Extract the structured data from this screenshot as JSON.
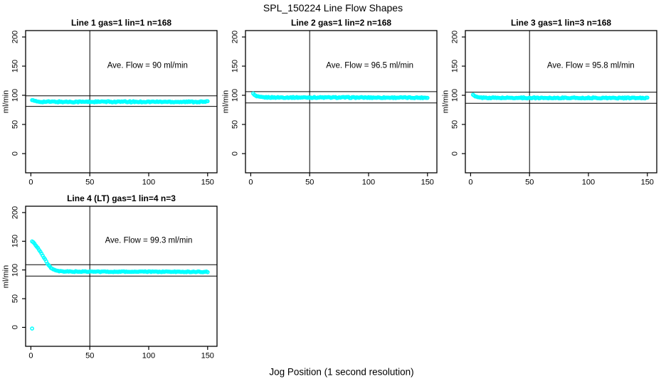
{
  "figure": {
    "background": "#ffffff"
  },
  "chart_data": {
    "type": "scatter",
    "title": "SPL_150224  Line Flow Shapes",
    "xlabel": "Jog Position (1 second resolution)",
    "layout": "2x2 grid, bottom-right tile empty",
    "grid": "off",
    "legend": "none",
    "point_style": "open-circle",
    "point_color": "#00ffff",
    "axis_color": "#000000",
    "xlim": [
      -4.5,
      158
    ],
    "ylim": [
      -33,
      211
    ],
    "xticks": [
      0,
      50,
      100,
      150
    ],
    "yticks": [
      0,
      50,
      100,
      150,
      200
    ],
    "guide_vline_x": 50,
    "hline_rule": "average flow plus/minus 10 percent",
    "plots": [
      {
        "title": "Line 1 gas=1 lin=1 n=168",
        "ylabel": "ml/min",
        "annotation": "Ave. Flow =  90  ml/min",
        "ave_flow": 90,
        "hlines": [
          99,
          81
        ],
        "label_pos": [
          99,
          150
        ],
        "x_range": [
          1,
          150
        ],
        "noise": 1.0,
        "profile": [
          [
            1,
            92
          ],
          [
            2,
            90.8
          ],
          [
            3,
            90
          ],
          [
            5,
            89.3
          ],
          [
            8,
            89
          ],
          [
            20,
            88.8
          ],
          [
            80,
            88.8
          ],
          [
            150,
            88.8
          ]
        ],
        "extra_points": []
      },
      {
        "title": "Line 2 gas=1 lin=2 n=168",
        "ylabel": "ml/min",
        "annotation": "Ave. Flow =  96.5  ml/min",
        "ave_flow": 96.5,
        "hlines": [
          106.2,
          86.9
        ],
        "label_pos": [
          101,
          150
        ],
        "x_range": [
          2,
          150
        ],
        "noise": 0.9,
        "profile": [
          [
            2,
            102.5
          ],
          [
            3,
            100.5
          ],
          [
            4,
            99
          ],
          [
            5,
            98
          ],
          [
            7,
            97
          ],
          [
            10,
            96.5
          ],
          [
            20,
            96.3
          ],
          [
            80,
            96.2
          ],
          [
            150,
            95.9
          ]
        ],
        "extra_points": []
      },
      {
        "title": "Line 3 gas=1 lin=3 n=168",
        "ylabel": "ml/min",
        "annotation": "Ave. Flow =  95.8  ml/min",
        "ave_flow": 95.8,
        "hlines": [
          105.4,
          86.2
        ],
        "label_pos": [
          102,
          150
        ],
        "x_range": [
          2,
          150
        ],
        "noise": 0.9,
        "profile": [
          [
            2,
            100.5
          ],
          [
            3,
            99
          ],
          [
            4,
            97.8
          ],
          [
            5,
            97
          ],
          [
            7,
            96.2
          ],
          [
            10,
            95.8
          ],
          [
            20,
            95.6
          ],
          [
            80,
            95.5
          ],
          [
            150,
            95.3
          ]
        ],
        "extra_points": []
      },
      {
        "title": "Line 4 (LT) gas=1 lin=4 n=3",
        "ylabel": "ml/min",
        "annotation": "Ave. Flow =  99.3  ml/min",
        "ave_flow": 99.3,
        "hlines": [
          109.2,
          89.4
        ],
        "label_pos": [
          100,
          150
        ],
        "x_range": [
          1,
          150
        ],
        "noise": 0.7,
        "profile": [
          [
            1,
            150
          ],
          [
            2,
            148
          ],
          [
            3,
            146
          ],
          [
            4,
            143.5
          ],
          [
            5,
            141
          ],
          [
            6,
            138
          ],
          [
            7,
            135
          ],
          [
            8,
            132
          ],
          [
            9,
            128.5
          ],
          [
            10,
            125
          ],
          [
            11,
            121.5
          ],
          [
            12,
            118
          ],
          [
            13,
            114.5
          ],
          [
            14,
            111.5
          ],
          [
            15,
            108.5
          ],
          [
            16,
            106
          ],
          [
            17,
            104
          ],
          [
            18,
            102.2
          ],
          [
            19,
            100.8
          ],
          [
            20,
            99.7
          ],
          [
            21,
            98.9
          ],
          [
            22,
            98.3
          ],
          [
            24,
            97.7
          ],
          [
            27,
            97.3
          ],
          [
            30,
            97.2
          ],
          [
            40,
            97.1
          ],
          [
            60,
            97
          ],
          [
            100,
            96.9
          ],
          [
            150,
            96.7
          ]
        ],
        "extra_points": [
          [
            1,
            -2
          ]
        ]
      }
    ]
  }
}
